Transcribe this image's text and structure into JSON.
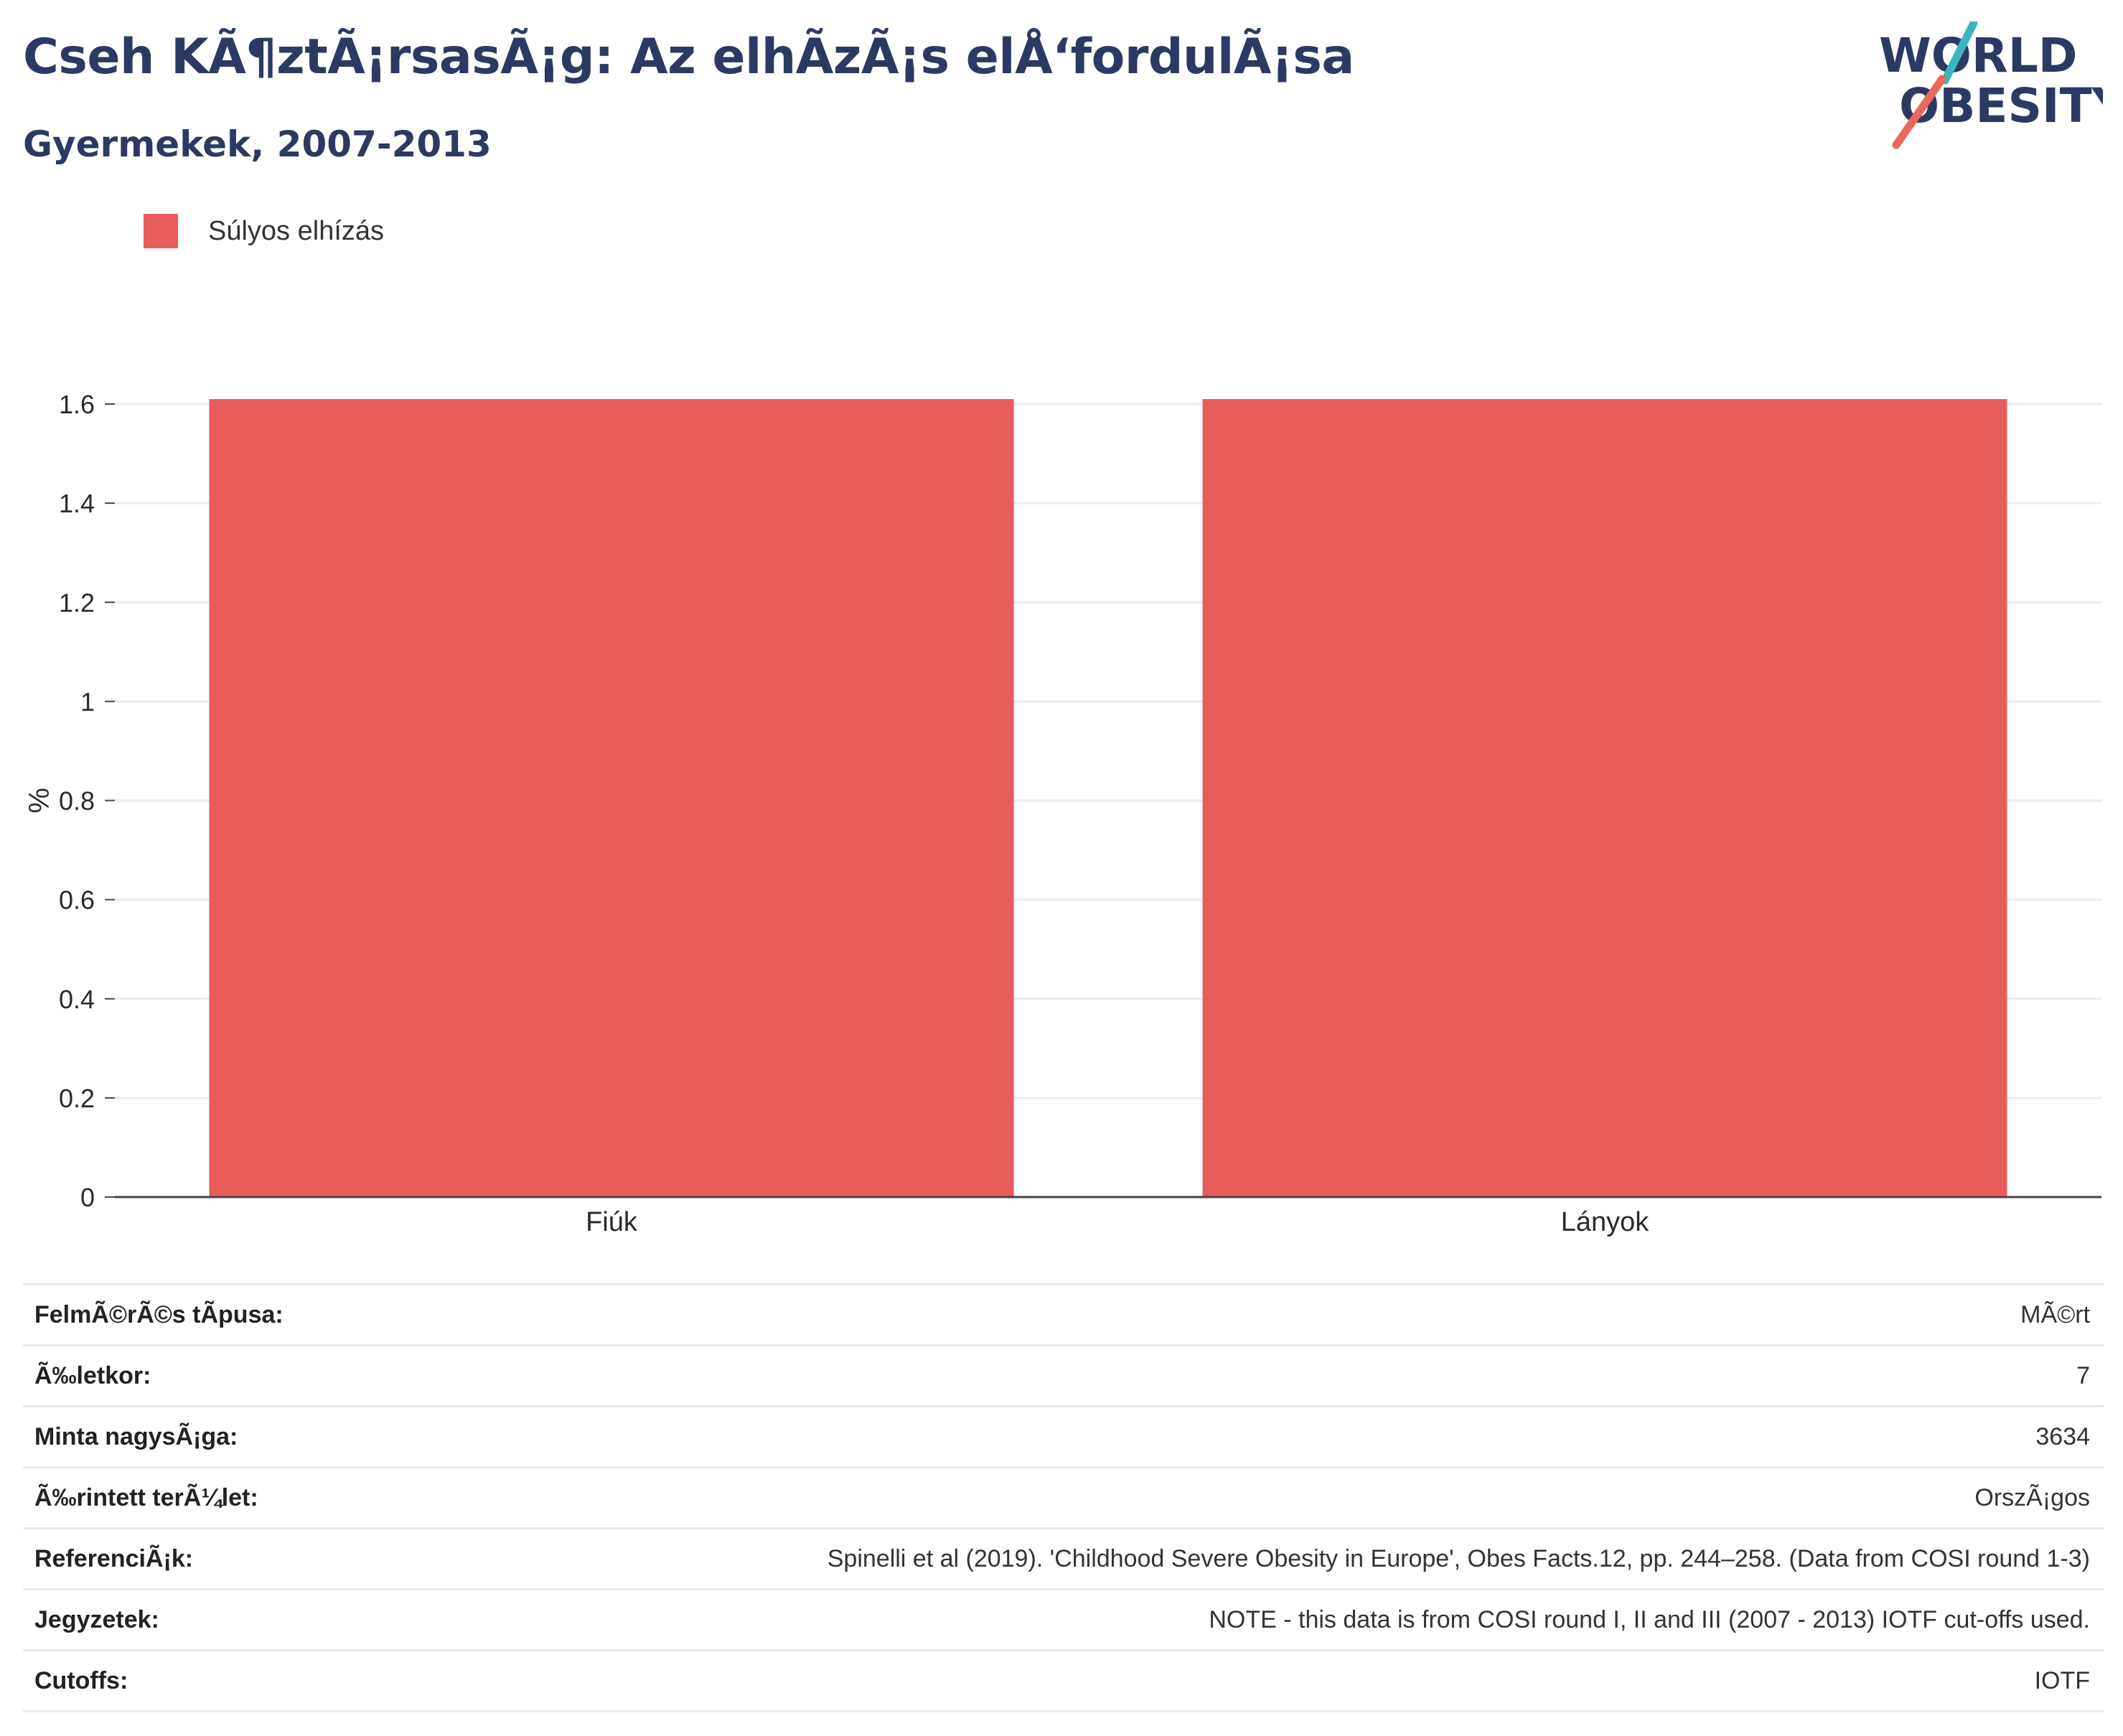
{
  "header": {
    "title": "Cseh KÃ¶ztÃ¡rsasÃ¡g: Az elhÃ­zÃ¡s elÅ‘fordulÃ¡sa",
    "subtitle": "Gyermekek, 2007-2013"
  },
  "logo": {
    "line1": "WORLD",
    "line2": "OBESITY",
    "text_color": "#2c3a63",
    "accent_teal": "#3bb6c0",
    "accent_coral": "#e8685c"
  },
  "legend": {
    "label": "Súlyos elhízás",
    "color": "#e95c5c"
  },
  "chart_data": {
    "type": "bar",
    "categories": [
      "Fiúk",
      "Lányok"
    ],
    "series": [
      {
        "name": "Súlyos elhízás",
        "values": [
          1.61,
          1.61
        ],
        "color": "#e95c5c"
      }
    ],
    "ylabel": "%",
    "ylim": [
      0,
      1.6
    ],
    "yticks": [
      "0",
      "0.2",
      "0.4",
      "0.6",
      "0.8",
      "1",
      "1.2",
      "1.4",
      "1.6"
    ],
    "grid": true
  },
  "info": [
    {
      "key": "FelmÃ©rÃ©s tÃpusa:",
      "value": "MÃ©rt"
    },
    {
      "key": "Ã‰letkor:",
      "value": "7"
    },
    {
      "key": "Minta nagysÃ¡ga:",
      "value": "3634"
    },
    {
      "key": "Ã‰rintett terÃ¼let:",
      "value": "OrszÃ¡gos"
    },
    {
      "key": "ReferenciÃ¡k:",
      "value": "Spinelli et al (2019). 'Childhood Severe Obesity in Europe', Obes Facts.12, pp. 244–258. (Data from COSI round 1-3)"
    },
    {
      "key": "Jegyzetek:",
      "value": "NOTE - this data is from COSI round I, II and III (2007 - 2013) IOTF cut-offs used."
    },
    {
      "key": "Cutoffs:",
      "value": "IOTF"
    }
  ]
}
